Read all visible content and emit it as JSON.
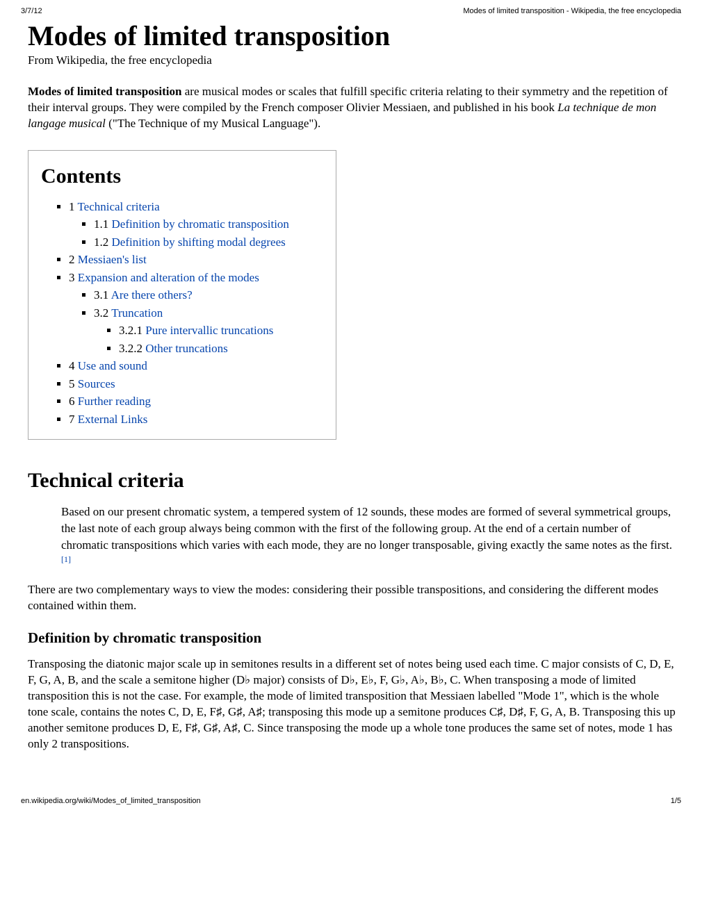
{
  "header": {
    "date": "3/7/12",
    "title": "Modes of limited transposition - Wikipedia, the free encyclopedia"
  },
  "page": {
    "title": "Modes of limited transposition",
    "subtitle": "From Wikipedia, the free encyclopedia"
  },
  "intro": {
    "bold": "Modes of limited transposition",
    "text1": " are musical modes or scales that fulfill specific criteria relating to their symmetry and the repetition of their interval groups. They were compiled by the French composer Olivier Messiaen, and published in his book ",
    "italic": "La technique de mon langage musical",
    "text2": " (\"The Technique of my Musical Language\")."
  },
  "contents": {
    "heading": "Contents",
    "items": [
      {
        "num": "1",
        "text": "Technical criteria",
        "children": [
          {
            "num": "1.1",
            "text": "Definition by chromatic transposition"
          },
          {
            "num": "1.2",
            "text": "Definition by shifting modal degrees"
          }
        ]
      },
      {
        "num": "2",
        "text": "Messiaen's list"
      },
      {
        "num": "3",
        "text": "Expansion and alteration of the modes",
        "children": [
          {
            "num": "3.1",
            "text": "Are there others?"
          },
          {
            "num": "3.2",
            "text": "Truncation",
            "children": [
              {
                "num": "3.2.1",
                "text": "Pure intervallic truncations"
              },
              {
                "num": "3.2.2",
                "text": "Other truncations"
              }
            ]
          }
        ]
      },
      {
        "num": "4",
        "text": "Use and sound"
      },
      {
        "num": "5",
        "text": "Sources"
      },
      {
        "num": "6",
        "text": "Further reading"
      },
      {
        "num": "7",
        "text": "External Links"
      }
    ]
  },
  "section1": {
    "heading": "Technical criteria",
    "quote": "Based on our present chromatic system, a tempered system of 12 sounds, these modes are formed of several symmetrical groups, the last note of each group always being common with the first of the following group. At the end of a certain number of chromatic transpositions which varies with each mode, they are no longer transposable, giving exactly the same notes as the first.",
    "citation": "[1]",
    "para": "There are two complementary ways to view the modes: considering their possible transpositions, and considering the different modes contained within them."
  },
  "section1_1": {
    "heading": "Definition by chromatic transposition",
    "para": "Transposing the diatonic major scale up in semitones results in a different set of notes being used each time. C major consists of C, D, E, F, G, A, B, and the scale a semitone higher (D♭ major) consists of D♭, E♭, F, G♭, A♭, B♭, C. When transposing a mode of limited transposition this is not the case. For example, the mode of limited transposition that Messiaen labelled \"Mode 1\", which is the whole tone scale, contains the notes C, D, E, F♯, G♯, A♯; transposing this mode up a semitone produces C♯, D♯, F, G, A, B. Transposing this up another semitone produces D, E, F♯, G♯, A♯, C. Since transposing the mode up a whole tone produces the same set of notes, mode 1 has only 2 transpositions."
  },
  "footer": {
    "url": "en.wikipedia.org/wiki/Modes_of_limited_transposition",
    "pagenum": "1/5"
  }
}
